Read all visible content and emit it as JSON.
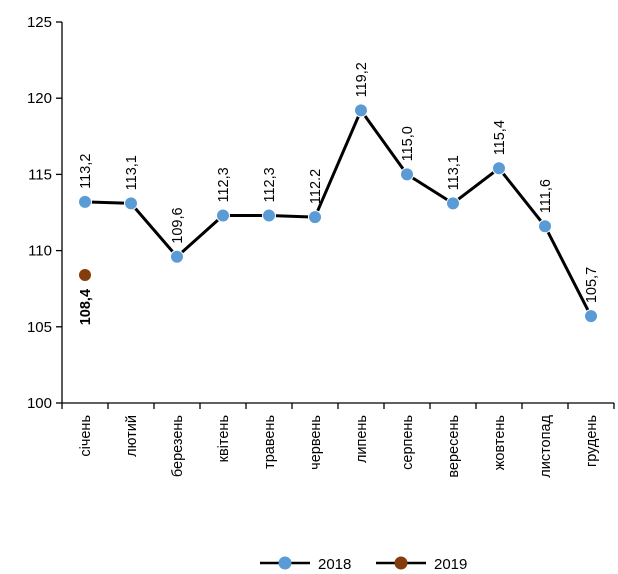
{
  "chart_data": {
    "type": "line",
    "title": "",
    "xlabel": "",
    "ylabel": "",
    "categories": [
      "січень",
      "лютий",
      "березень",
      "квітень",
      "травень",
      "червень",
      "липень",
      "серпень",
      "вересень",
      "жовтень",
      "листопад",
      "грудень"
    ],
    "ylim": [
      100,
      125
    ],
    "yticks": [
      100,
      105,
      110,
      115,
      120,
      125
    ],
    "grid": false,
    "legend_position": "bottom",
    "series": [
      {
        "name": "2018",
        "values": [
          113.2,
          113.1,
          109.6,
          112.3,
          112.3,
          112.2,
          119.2,
          115.0,
          113.1,
          115.4,
          111.6,
          105.7
        ],
        "labels": [
          "113,2",
          "113,1",
          "109,6",
          "112,3",
          "112,3",
          "112.2",
          "119,2",
          "115,0",
          "113,1",
          "115,4",
          "111,6",
          "105,7"
        ],
        "marker_color": "#5b9bd5",
        "line_color": "#000000"
      },
      {
        "name": "2019",
        "values": [
          108.4,
          null,
          null,
          null,
          null,
          null,
          null,
          null,
          null,
          null,
          null,
          null
        ],
        "labels": [
          "108,4",
          "",
          "",
          "",
          "",
          "",
          "",
          "",
          "",
          "",
          "",
          ""
        ],
        "marker_color": "#843c0c",
        "line_color": "#000000"
      }
    ]
  }
}
